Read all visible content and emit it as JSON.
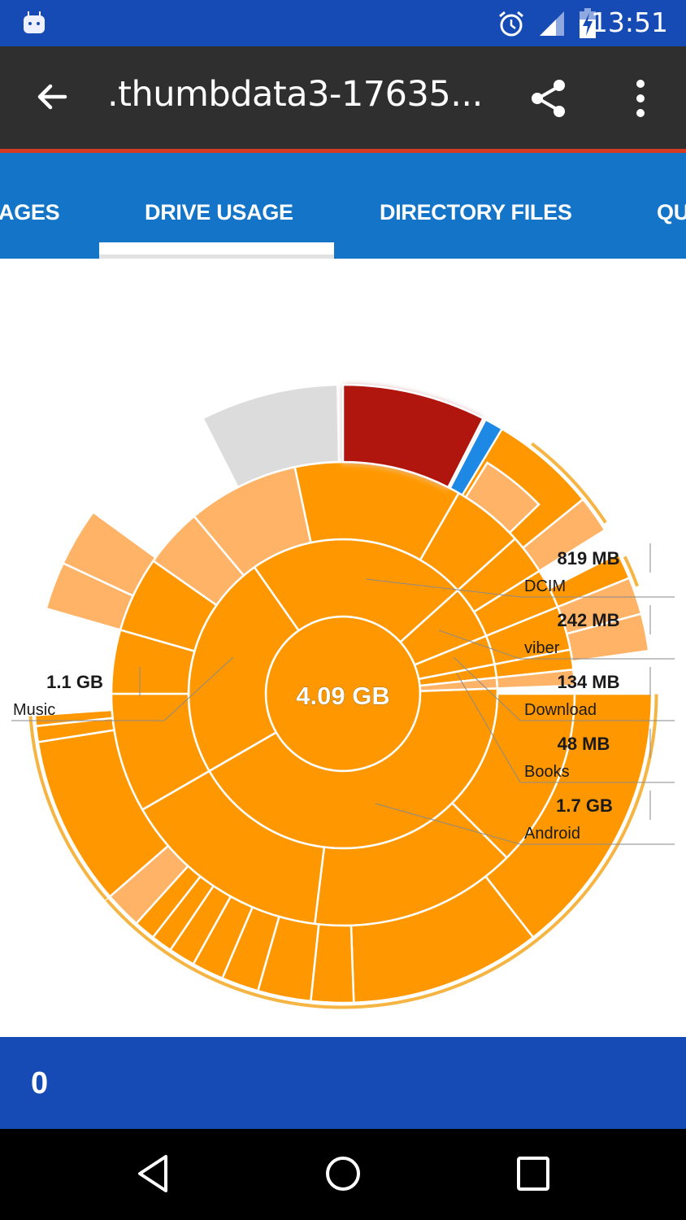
{
  "status_bar": {
    "time": "13:51",
    "icons": [
      "android-notification-icon",
      "alarm-icon",
      "signal-icon",
      "battery-charging-icon"
    ]
  },
  "toolbar": {
    "title": ".thumbdata3-17635...",
    "back_icon": "arrow-back-icon",
    "share_icon": "share-icon",
    "more_icon": "more-vert-icon"
  },
  "tabs": [
    {
      "label": "AGES",
      "active": false
    },
    {
      "label": "DRIVE USAGE",
      "active": true
    },
    {
      "label": "DIRECTORY FILES",
      "active": false
    },
    {
      "label": "QU",
      "active": false
    }
  ],
  "chart_data": {
    "type": "sunburst",
    "title": "Drive Usage",
    "center_label": "4.09 GB",
    "total": "4.09 GB",
    "labels": [
      {
        "name": "DCIM",
        "size": "819 MB"
      },
      {
        "name": "viber",
        "size": "242 MB"
      },
      {
        "name": "Download",
        "size": "134 MB"
      },
      {
        "name": "Books",
        "size": "48 MB"
      },
      {
        "name": "Android",
        "size": "1.7 GB"
      },
      {
        "name": "Music",
        "size": "1.1 GB"
      }
    ],
    "colors": {
      "primary": "#ff9800",
      "light": "#ffb366",
      "selected": "#b0120a",
      "highlight": "#1e88e5",
      "grey": "#dcdcdc"
    }
  },
  "bottom_bar": {
    "count": "0"
  },
  "nav_bar": {
    "back": "nav-back-icon",
    "home": "nav-home-icon",
    "recents": "nav-recents-icon"
  }
}
